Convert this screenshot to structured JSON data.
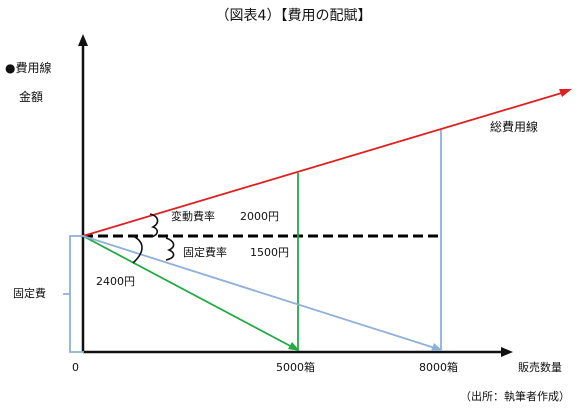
{
  "title": "（図表4）【費用の配賦】",
  "legend_label": "費用線",
  "y_axis_label": "金額",
  "x_axis_label": "販売数量",
  "origin_label": "0",
  "total_cost_label": "総費用線",
  "variable_cost_label": "変動費率",
  "variable_cost_value": "2000円",
  "fixed_cost_rate_label": "固定費率",
  "fixed_cost_rate_value": "1500円",
  "combined_value": "2400円",
  "fixed_cost_label": "固定費",
  "tick_5000": "5000箱",
  "tick_8000": "8000箱",
  "source": "（出所：執筆者作成）",
  "colors": {
    "axis": "#111111",
    "total_cost_line": "#e02020",
    "allocation_5000": "#22aa44",
    "allocation_8000": "#8fb0d8",
    "fixed_cost_dashed": "#000000"
  }
}
